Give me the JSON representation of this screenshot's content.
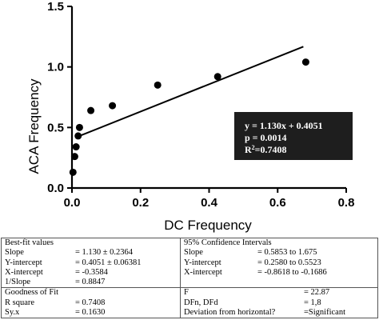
{
  "chart_data": {
    "type": "scatter",
    "xlabel": "DC Frequency",
    "ylabel": "ACA Frequency",
    "xlim": [
      0,
      0.8
    ],
    "ylim": [
      0,
      1.5
    ],
    "x_ticks": [
      "0.0",
      "0.2",
      "0.4",
      "0.6",
      "0.8"
    ],
    "y_ticks": [
      "0.0",
      "0.5",
      "1.0",
      "1.5"
    ],
    "points": [
      {
        "x": 0.003,
        "y": 0.13
      },
      {
        "x": 0.008,
        "y": 0.26
      },
      {
        "x": 0.012,
        "y": 0.34
      },
      {
        "x": 0.018,
        "y": 0.43
      },
      {
        "x": 0.022,
        "y": 0.5
      },
      {
        "x": 0.055,
        "y": 0.64
      },
      {
        "x": 0.118,
        "y": 0.68
      },
      {
        "x": 0.25,
        "y": 0.85
      },
      {
        "x": 0.425,
        "y": 0.92
      },
      {
        "x": 0.682,
        "y": 1.04
      }
    ],
    "fit_line": {
      "slope": 1.13,
      "intercept": 0.4051,
      "x_range": [
        0.01,
        0.675
      ]
    },
    "annotation": {
      "equation": "y = 1.130x + 0.4051",
      "p_value": "p = 0.0014",
      "r2_base": "R",
      "r2_sup": "2",
      "r2_value": "=0.7408"
    }
  },
  "stats_table": {
    "best_fit": {
      "header": "Best-fit values",
      "rows": [
        {
          "label": "Slope",
          "value": "= 1.130 ± 0.2364"
        },
        {
          "label": "Y-intercept",
          "value": "= 0.4051 ± 0.06381"
        },
        {
          "label": "X-intercept",
          "value": "= -0.3584"
        },
        {
          "label": "1/Slope",
          "value": "= 0.8847"
        }
      ]
    },
    "confidence": {
      "header": "95% Confidence Intervals",
      "rows": [
        {
          "label": "Slope",
          "value": "= 0.5853 to 1.675"
        },
        {
          "label": "Y-intercept",
          "value": "= 0.2580 to 0.5523"
        },
        {
          "label": "X-intercept",
          "value": "= -0.8618 to -0.1686"
        }
      ]
    },
    "goodness": {
      "header": "Goodness of Fit",
      "rows": [
        {
          "label": "R square",
          "value": "= 0.7408"
        },
        {
          "label": "Sy.x",
          "value": "= 0.1630"
        }
      ]
    },
    "significance": {
      "rows": [
        {
          "label": "F",
          "value": "= 22.87"
        },
        {
          "label": "DFn, DFd",
          "value": "= 1,8"
        },
        {
          "label": "Deviation from horizontal?",
          "value": "=Significant"
        }
      ]
    }
  }
}
